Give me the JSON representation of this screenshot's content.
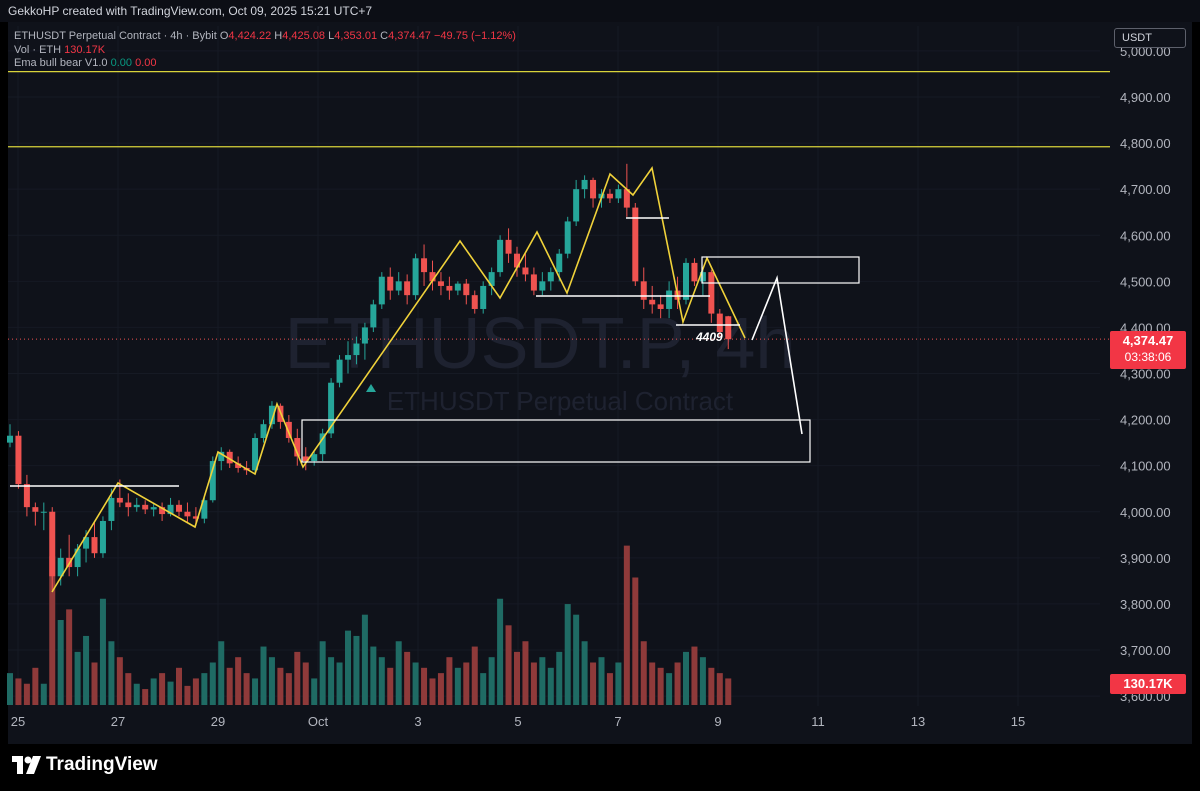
{
  "header": {
    "caption": "GekkoHP created with TradingView.com, Oct 09, 2025 15:21 UTC+7"
  },
  "legend": {
    "symbol": "ETHUSDT Perpetual Contract · 4h · Bybit",
    "o_label": "O",
    "o": "4,424.22",
    "h_label": "H",
    "h": "4,425.08",
    "l_label": "L",
    "l": "4,353.01",
    "c_label": "C",
    "c": "4,374.47",
    "change": "−49.75 (−1.12%)",
    "vol_label": "Vol · ETH",
    "vol": "130.17K",
    "ema_label": "Ema bull bear V1.0",
    "ema_a": "0.00",
    "ema_b": "0.00"
  },
  "currency": "USDT",
  "last_price": "4,374.47",
  "countdown": "03:38:06",
  "volume_tag": "130.17K",
  "watermark": {
    "line1": "ETHUSDT.P, 4h",
    "line2": "ETHUSDT Perpetual Contract"
  },
  "annotation_label": "4409",
  "brand": "TradingView",
  "colors": {
    "up": "#26a69a",
    "down": "#ef5350",
    "zigzag": "#f0d23a",
    "level": "#d8d33a",
    "drawing": "#ffffff",
    "price_tag": "#f23645"
  },
  "chart_data": {
    "type": "candlestick",
    "symbol": "ETHUSDT Perpetual Contract",
    "timeframe": "4h",
    "exchange": "Bybit",
    "y_ticks": [
      "3,600.00",
      "3,700.00",
      "3,800.00",
      "3,900.00",
      "4,000.00",
      "4,100.00",
      "4,200.00",
      "4,300.00",
      "4,400.00",
      "4,500.00",
      "4,600.00",
      "4,700.00",
      "4,800.00",
      "4,900.00",
      "5,000.00"
    ],
    "x_ticks": [
      "25",
      "27",
      "29",
      "Oct",
      "3",
      "5",
      "7",
      "9",
      "11",
      "13",
      "15"
    ],
    "ylim": [
      3595,
      5020
    ],
    "horizontal_levels": [
      4955,
      4792
    ],
    "candles": [
      {
        "o": 4150,
        "h": 4190,
        "l": 4140,
        "c": 4165
      },
      {
        "o": 4165,
        "h": 4175,
        "l": 4050,
        "c": 4060
      },
      {
        "o": 4060,
        "h": 4080,
        "l": 3990,
        "c": 4010
      },
      {
        "o": 4010,
        "h": 4020,
        "l": 3970,
        "c": 4000
      },
      {
        "o": 4000,
        "h": 4020,
        "l": 3960,
        "c": 4000
      },
      {
        "o": 4000,
        "h": 4010,
        "l": 3830,
        "c": 3860
      },
      {
        "o": 3860,
        "h": 3920,
        "l": 3840,
        "c": 3900
      },
      {
        "o": 3900,
        "h": 3950,
        "l": 3860,
        "c": 3880
      },
      {
        "o": 3880,
        "h": 3930,
        "l": 3860,
        "c": 3920
      },
      {
        "o": 3920,
        "h": 3960,
        "l": 3890,
        "c": 3945
      },
      {
        "o": 3945,
        "h": 3980,
        "l": 3900,
        "c": 3910
      },
      {
        "o": 3910,
        "h": 3990,
        "l": 3900,
        "c": 3980
      },
      {
        "o": 3980,
        "h": 4050,
        "l": 3960,
        "c": 4030
      },
      {
        "o": 4030,
        "h": 4070,
        "l": 4010,
        "c": 4020
      },
      {
        "o": 4020,
        "h": 4040,
        "l": 3990,
        "c": 4010
      },
      {
        "o": 4010,
        "h": 4030,
        "l": 4000,
        "c": 4015
      },
      {
        "o": 4015,
        "h": 4025,
        "l": 3995,
        "c": 4005
      },
      {
        "o": 4005,
        "h": 4020,
        "l": 3990,
        "c": 4010
      },
      {
        "o": 4010,
        "h": 4020,
        "l": 3980,
        "c": 3995
      },
      {
        "o": 3995,
        "h": 4030,
        "l": 3990,
        "c": 4015
      },
      {
        "o": 4015,
        "h": 4025,
        "l": 3990,
        "c": 4000
      },
      {
        "o": 4000,
        "h": 4020,
        "l": 3975,
        "c": 3990
      },
      {
        "o": 3990,
        "h": 4010,
        "l": 3970,
        "c": 3985
      },
      {
        "o": 3985,
        "h": 4030,
        "l": 3975,
        "c": 4025
      },
      {
        "o": 4025,
        "h": 4120,
        "l": 4020,
        "c": 4110
      },
      {
        "o": 4110,
        "h": 4140,
        "l": 4090,
        "c": 4130
      },
      {
        "o": 4130,
        "h": 4135,
        "l": 4095,
        "c": 4105
      },
      {
        "o": 4105,
        "h": 4120,
        "l": 4085,
        "c": 4095
      },
      {
        "o": 4095,
        "h": 4110,
        "l": 4080,
        "c": 4090
      },
      {
        "o": 4090,
        "h": 4170,
        "l": 4085,
        "c": 4160
      },
      {
        "o": 4160,
        "h": 4200,
        "l": 4150,
        "c": 4190
      },
      {
        "o": 4190,
        "h": 4240,
        "l": 4180,
        "c": 4230
      },
      {
        "o": 4230,
        "h": 4235,
        "l": 4180,
        "c": 4195
      },
      {
        "o": 4195,
        "h": 4210,
        "l": 4150,
        "c": 4160
      },
      {
        "o": 4160,
        "h": 4180,
        "l": 4100,
        "c": 4120
      },
      {
        "o": 4120,
        "h": 4140,
        "l": 4090,
        "c": 4110
      },
      {
        "o": 4110,
        "h": 4130,
        "l": 4100,
        "c": 4125
      },
      {
        "o": 4125,
        "h": 4180,
        "l": 4110,
        "c": 4170
      },
      {
        "o": 4170,
        "h": 4290,
        "l": 4160,
        "c": 4280
      },
      {
        "o": 4280,
        "h": 4340,
        "l": 4270,
        "c": 4330
      },
      {
        "o": 4330,
        "h": 4370,
        "l": 4300,
        "c": 4340
      },
      {
        "o": 4340,
        "h": 4380,
        "l": 4320,
        "c": 4365
      },
      {
        "o": 4365,
        "h": 4410,
        "l": 4330,
        "c": 4400
      },
      {
        "o": 4400,
        "h": 4460,
        "l": 4390,
        "c": 4450
      },
      {
        "o": 4450,
        "h": 4520,
        "l": 4440,
        "c": 4510
      },
      {
        "o": 4510,
        "h": 4530,
        "l": 4460,
        "c": 4480
      },
      {
        "o": 4480,
        "h": 4520,
        "l": 4470,
        "c": 4500
      },
      {
        "o": 4500,
        "h": 4515,
        "l": 4450,
        "c": 4470
      },
      {
        "o": 4470,
        "h": 4560,
        "l": 4460,
        "c": 4550
      },
      {
        "o": 4550,
        "h": 4580,
        "l": 4490,
        "c": 4520
      },
      {
        "o": 4520,
        "h": 4545,
        "l": 4480,
        "c": 4500
      },
      {
        "o": 4500,
        "h": 4520,
        "l": 4470,
        "c": 4490
      },
      {
        "o": 4490,
        "h": 4510,
        "l": 4460,
        "c": 4480
      },
      {
        "o": 4480,
        "h": 4500,
        "l": 4470,
        "c": 4495
      },
      {
        "o": 4495,
        "h": 4505,
        "l": 4450,
        "c": 4470
      },
      {
        "o": 4470,
        "h": 4480,
        "l": 4430,
        "c": 4440
      },
      {
        "o": 4440,
        "h": 4500,
        "l": 4430,
        "c": 4490
      },
      {
        "o": 4490,
        "h": 4530,
        "l": 4470,
        "c": 4520
      },
      {
        "o": 4520,
        "h": 4600,
        "l": 4510,
        "c": 4590
      },
      {
        "o": 4590,
        "h": 4615,
        "l": 4540,
        "c": 4560
      },
      {
        "o": 4560,
        "h": 4575,
        "l": 4510,
        "c": 4530
      },
      {
        "o": 4530,
        "h": 4560,
        "l": 4500,
        "c": 4515
      },
      {
        "o": 4515,
        "h": 4530,
        "l": 4470,
        "c": 4480
      },
      {
        "o": 4480,
        "h": 4520,
        "l": 4470,
        "c": 4500
      },
      {
        "o": 4500,
        "h": 4530,
        "l": 4480,
        "c": 4520
      },
      {
        "o": 4520,
        "h": 4570,
        "l": 4500,
        "c": 4560
      },
      {
        "o": 4560,
        "h": 4640,
        "l": 4550,
        "c": 4630
      },
      {
        "o": 4630,
        "h": 4720,
        "l": 4620,
        "c": 4700
      },
      {
        "o": 4700,
        "h": 4730,
        "l": 4680,
        "c": 4720
      },
      {
        "o": 4720,
        "h": 4725,
        "l": 4660,
        "c": 4680
      },
      {
        "o": 4680,
        "h": 4700,
        "l": 4660,
        "c": 4690
      },
      {
        "o": 4690,
        "h": 4700,
        "l": 4670,
        "c": 4680
      },
      {
        "o": 4680,
        "h": 4710,
        "l": 4670,
        "c": 4700
      },
      {
        "o": 4700,
        "h": 4755,
        "l": 4640,
        "c": 4660
      },
      {
        "o": 4660,
        "h": 4670,
        "l": 4490,
        "c": 4500
      },
      {
        "o": 4500,
        "h": 4530,
        "l": 4440,
        "c": 4460
      },
      {
        "o": 4460,
        "h": 4490,
        "l": 4430,
        "c": 4450
      },
      {
        "o": 4450,
        "h": 4470,
        "l": 4420,
        "c": 4440
      },
      {
        "o": 4440,
        "h": 4500,
        "l": 4420,
        "c": 4480
      },
      {
        "o": 4480,
        "h": 4510,
        "l": 4440,
        "c": 4460
      },
      {
        "o": 4460,
        "h": 4550,
        "l": 4450,
        "c": 4540
      },
      {
        "o": 4540,
        "h": 4550,
        "l": 4490,
        "c": 4500
      },
      {
        "o": 4500,
        "h": 4530,
        "l": 4470,
        "c": 4520
      },
      {
        "o": 4520,
        "h": 4525,
        "l": 4410,
        "c": 4430
      },
      {
        "o": 4430,
        "h": 4440,
        "l": 4380,
        "c": 4390
      },
      {
        "o": 4424.22,
        "h": 4425.08,
        "l": 4353.01,
        "c": 4374.47
      }
    ],
    "volume": [
      30,
      25,
      20,
      35,
      20,
      140,
      80,
      90,
      50,
      65,
      40,
      100,
      60,
      45,
      30,
      20,
      15,
      25,
      30,
      22,
      35,
      18,
      25,
      30,
      40,
      60,
      35,
      45,
      30,
      25,
      55,
      45,
      35,
      30,
      50,
      40,
      25,
      60,
      45,
      40,
      70,
      65,
      85,
      55,
      45,
      35,
      60,
      50,
      40,
      35,
      25,
      30,
      45,
      35,
      40,
      55,
      30,
      45,
      100,
      75,
      50,
      60,
      40,
      45,
      35,
      50,
      95,
      85,
      60,
      40,
      45,
      30,
      40,
      150,
      120,
      60,
      40,
      35,
      30,
      40,
      50,
      55,
      45,
      35,
      30,
      25
    ],
    "drawings": {
      "support_box_1": {
        "from": 4200,
        "to": 4110
      },
      "resistance_box": {
        "from": 4555,
        "to": 4495
      },
      "label_level": 4409
    }
  }
}
